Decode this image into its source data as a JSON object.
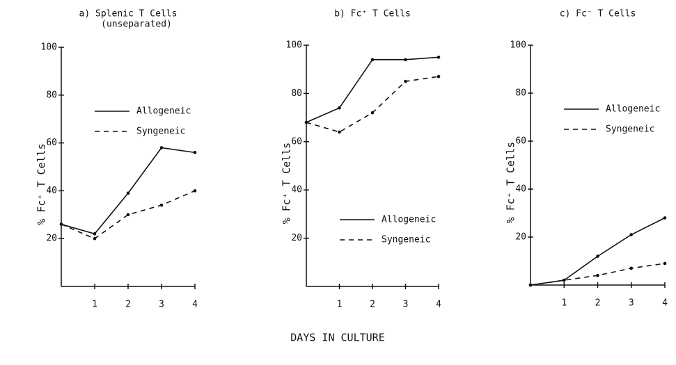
{
  "xlabel": "DAYS IN CULTURE",
  "chart_data": [
    {
      "type": "line",
      "title": "a) Splenic T Cells",
      "subtitle": "(unseparated)",
      "ylabel": "% Fc⁺ T Cells",
      "x": [
        0,
        1,
        2,
        3,
        4
      ],
      "xlim": [
        0,
        4
      ],
      "xticks": [
        1,
        2,
        3,
        4
      ],
      "ylim": [
        0,
        100
      ],
      "yticks": [
        20,
        40,
        60,
        80,
        100
      ],
      "legend": "upper right",
      "series": [
        {
          "name": "Allogeneic",
          "color": "#111111",
          "style": "solid",
          "values": [
            26,
            22,
            39,
            58,
            56
          ]
        },
        {
          "name": "Syngeneic",
          "color": "#111111",
          "style": "dashed",
          "values": [
            26,
            20,
            30,
            34,
            40
          ]
        }
      ]
    },
    {
      "type": "line",
      "title": "b) Fc⁺ T Cells",
      "ylabel": "% Fc⁺ T Cells",
      "x": [
        0,
        1,
        2,
        3,
        4
      ],
      "xlim": [
        0,
        4
      ],
      "xticks": [
        1,
        2,
        3,
        4
      ],
      "ylim": [
        0,
        100
      ],
      "yticks": [
        20,
        40,
        60,
        80,
        100
      ],
      "legend": "lower right",
      "series": [
        {
          "name": "Allogeneic",
          "color": "#111111",
          "style": "solid",
          "values": [
            68,
            74,
            94,
            94,
            95
          ]
        },
        {
          "name": "Syngeneic",
          "color": "#111111",
          "style": "dashed",
          "values": [
            68,
            64,
            72,
            85,
            87
          ]
        }
      ]
    },
    {
      "type": "line",
      "title": "c) Fc⁻ T Cells",
      "ylabel": "% Fc⁺ T Cells",
      "x": [
        0,
        1,
        2,
        3,
        4
      ],
      "xlim": [
        0,
        4
      ],
      "xticks": [
        1,
        2,
        3,
        4
      ],
      "ylim": [
        0,
        100
      ],
      "yticks": [
        20,
        40,
        60,
        80,
        100
      ],
      "legend": "upper right",
      "series": [
        {
          "name": "Allogeneic",
          "color": "#111111",
          "style": "solid",
          "values": [
            0,
            2,
            12,
            21,
            28
          ]
        },
        {
          "name": "Syngeneic",
          "color": "#111111",
          "style": "dashed",
          "values": [
            0,
            2,
            4,
            7,
            9
          ]
        }
      ]
    }
  ]
}
